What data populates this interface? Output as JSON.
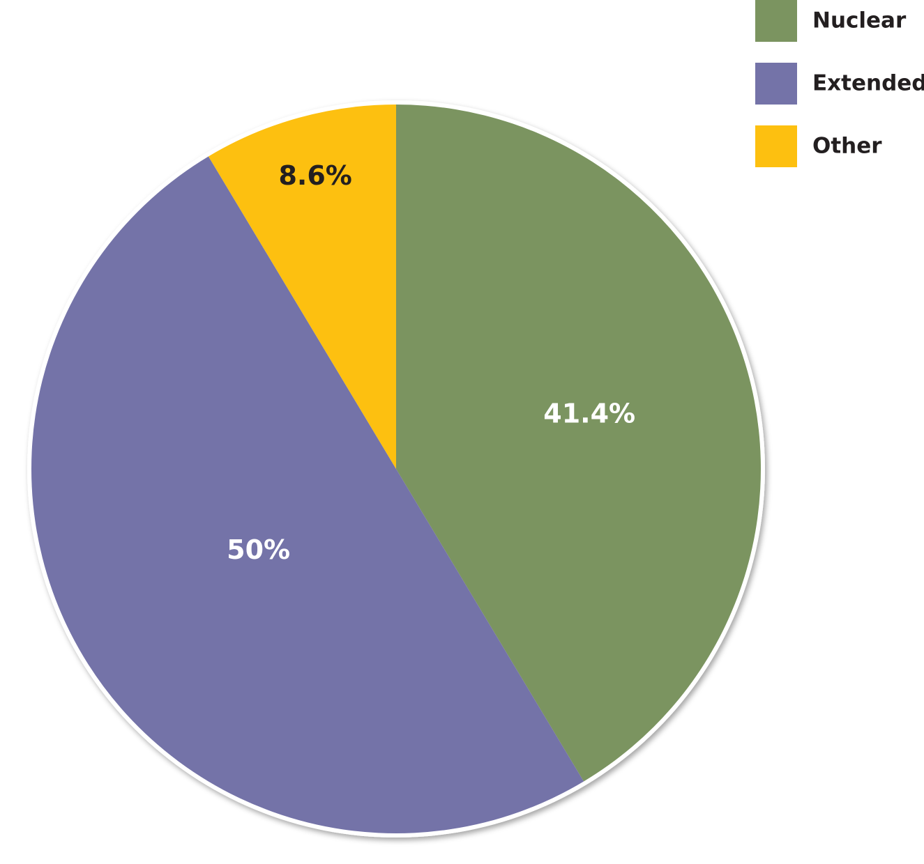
{
  "chart_data": {
    "type": "pie",
    "categories": [
      "Nuclear",
      "Extended",
      "Other"
    ],
    "values": [
      41.4,
      50,
      8.6
    ],
    "value_labels": [
      "41.4%",
      "50%",
      "8.6%"
    ],
    "colors": [
      "#7b9460",
      "#7473a8",
      "#fdc010"
    ],
    "legend": "top-right"
  }
}
